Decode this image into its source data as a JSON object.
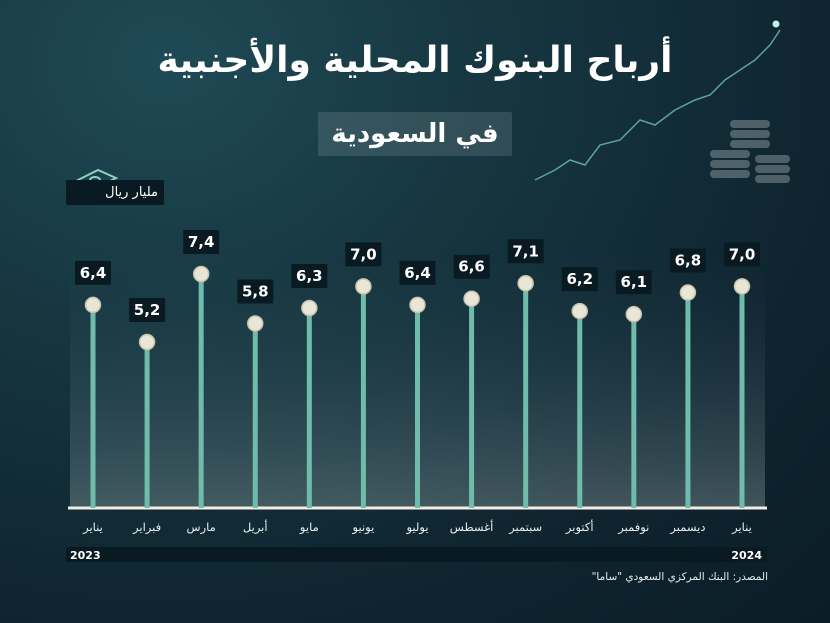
{
  "title": "أرباح البنوك المحلية والأجنبية",
  "subtitle": "في السعودية",
  "unit": "مليار ريال",
  "source": "المصدر: البنك المركزي السعودي \"ساما\"",
  "colors": {
    "stem": "#6fbcab",
    "dot": "#e9e6d6",
    "label_bg": "#0a1a22",
    "year_bar": "#0a1a22",
    "baseline": "#f2ede0"
  },
  "chart_data": {
    "type": "bar",
    "categories": [
      "يناير",
      "فبراير",
      "مارس",
      "أبريل",
      "مايو",
      "يونيو",
      "يوليو",
      "أغسطس",
      "سبتمبر",
      "أكتوبر",
      "نوفمبر",
      "ديسمبر",
      "يناير"
    ],
    "values": [
      6.4,
      5.2,
      7.4,
      5.8,
      6.3,
      7.0,
      6.4,
      6.6,
      7.1,
      6.2,
      6.1,
      6.8,
      7.0
    ],
    "value_labels": [
      "6,4",
      "5,2",
      "7,4",
      "5,8",
      "6,3",
      "7,0",
      "6,4",
      "6,6",
      "7,1",
      "6,2",
      "6,1",
      "6,8",
      "7,0"
    ],
    "years": [
      "2023",
      "2024"
    ],
    "ylabel": "مليار ريال",
    "ylim": [
      0,
      7.4
    ],
    "grid": false,
    "legend": "none"
  }
}
